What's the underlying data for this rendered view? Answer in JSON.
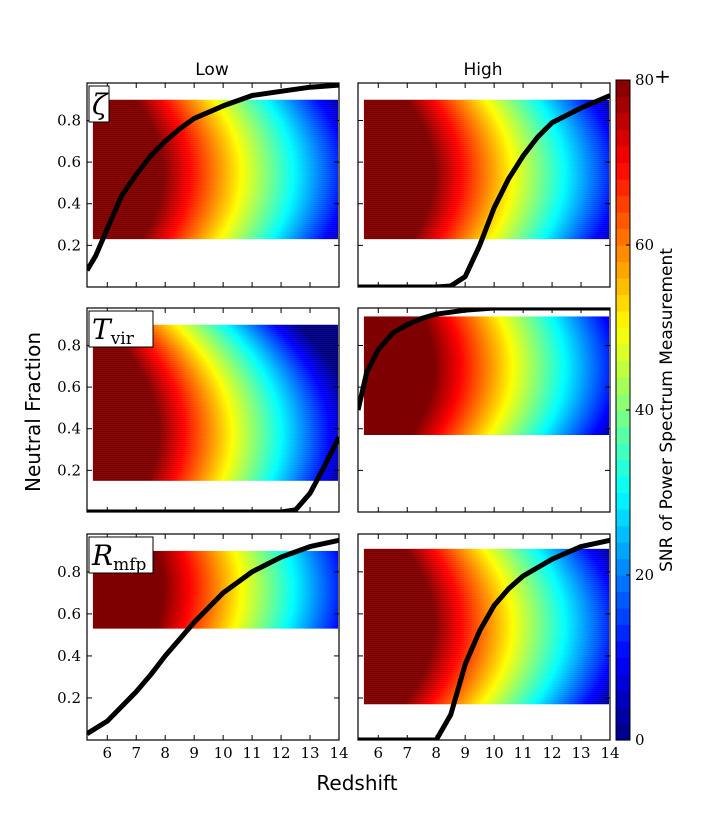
{
  "figure": {
    "xlabel": "Redshift",
    "ylabel": "Neutral Fraction",
    "column_titles": [
      "Low",
      "High"
    ],
    "colorbar": {
      "label": "SNR of Power Spectrum Measurement",
      "ticks": [
        "0",
        "20",
        "40",
        "60",
        "80"
      ],
      "top_marker": "+",
      "range": [
        0,
        80
      ]
    },
    "param_labels": [
      {
        "base": "ζ",
        "sub": ""
      },
      {
        "base": "T",
        "sub": "vir"
      },
      {
        "base": "R",
        "sub": "mfp"
      }
    ],
    "x_tick_labels": [
      "6",
      "7",
      "8",
      "9",
      "10",
      "11",
      "12",
      "13",
      "14"
    ],
    "y_tick_labels": [
      "0.2",
      "0.4",
      "0.6",
      "0.8"
    ]
  },
  "chart_data": [
    {
      "type": "heatmap",
      "param": "zeta",
      "setting": "Low",
      "xlim": [
        5.3,
        14
      ],
      "ylim": [
        0,
        0.98
      ],
      "band": [
        0.23,
        0.9
      ],
      "sweet_spot": 0.55,
      "vmin_x": 14,
      "history": {
        "z": [
          5.3,
          5.6,
          6,
          6.5,
          7,
          7.5,
          8,
          8.5,
          9,
          10,
          11,
          12,
          13,
          14
        ],
        "xHI": [
          0.08,
          0.15,
          0.28,
          0.44,
          0.54,
          0.63,
          0.7,
          0.76,
          0.81,
          0.87,
          0.92,
          0.94,
          0.96,
          0.97
        ]
      }
    },
    {
      "type": "heatmap",
      "param": "zeta",
      "setting": "High",
      "xlim": [
        5.3,
        14
      ],
      "ylim": [
        0,
        0.98
      ],
      "band": [
        0.23,
        0.9
      ],
      "sweet_spot": 0.55,
      "vmin_x": 14,
      "history": {
        "z": [
          5.3,
          6,
          7,
          8,
          8.5,
          9,
          9.5,
          10,
          10.5,
          11,
          11.5,
          12,
          13,
          14
        ],
        "xHI": [
          0,
          0,
          0,
          0,
          0.005,
          0.05,
          0.2,
          0.38,
          0.52,
          0.63,
          0.72,
          0.79,
          0.86,
          0.92
        ]
      }
    },
    {
      "type": "heatmap",
      "param": "Tvir",
      "setting": "Low",
      "xlim": [
        5.3,
        14
      ],
      "ylim": [
        0,
        0.98
      ],
      "band": [
        0.15,
        0.9
      ],
      "sweet_spot": 0.38,
      "vmin_x": 13.5,
      "history": {
        "z": [
          5.3,
          7,
          9,
          11,
          12,
          12.5,
          13,
          13.5,
          14
        ],
        "xHI": [
          0,
          0,
          0,
          0,
          0,
          0.01,
          0.09,
          0.22,
          0.36
        ]
      }
    },
    {
      "type": "heatmap",
      "param": "Tvir",
      "setting": "High",
      "xlim": [
        5.3,
        14
      ],
      "ylim": [
        0,
        0.98
      ],
      "band": [
        0.37,
        0.94
      ],
      "sweet_spot": 0.7,
      "vmin_x": 14,
      "history": {
        "z": [
          5.3,
          5.6,
          6,
          6.5,
          7,
          7.5,
          8,
          8.5,
          9,
          10,
          11,
          12,
          13,
          14
        ],
        "xHI": [
          0.49,
          0.67,
          0.78,
          0.86,
          0.9,
          0.93,
          0.95,
          0.96,
          0.97,
          0.98,
          0.98,
          0.98,
          0.98,
          0.98
        ]
      }
    },
    {
      "type": "heatmap",
      "param": "Rmfp",
      "setting": "Low",
      "xlim": [
        5.3,
        14
      ],
      "ylim": [
        0,
        0.98
      ],
      "band": [
        0.53,
        0.9
      ],
      "sweet_spot": 0.72,
      "vmin_x": 14,
      "history": {
        "z": [
          5.3,
          6,
          7,
          7.5,
          8,
          8.5,
          9,
          10,
          11,
          12,
          13,
          14
        ],
        "xHI": [
          0.03,
          0.09,
          0.23,
          0.31,
          0.4,
          0.48,
          0.56,
          0.7,
          0.8,
          0.87,
          0.92,
          0.95
        ]
      }
    },
    {
      "type": "heatmap",
      "param": "Rmfp",
      "setting": "High",
      "xlim": [
        5.3,
        14
      ],
      "ylim": [
        0,
        0.98
      ],
      "band": [
        0.17,
        0.91
      ],
      "sweet_spot": 0.55,
      "vmin_x": 14,
      "history": {
        "z": [
          5.3,
          6,
          7,
          8,
          8.5,
          9,
          9.5,
          10,
          10.5,
          11,
          12,
          13,
          14
        ],
        "xHI": [
          0,
          0,
          0,
          0,
          0.12,
          0.36,
          0.52,
          0.64,
          0.72,
          0.78,
          0.86,
          0.92,
          0.95
        ]
      }
    }
  ]
}
